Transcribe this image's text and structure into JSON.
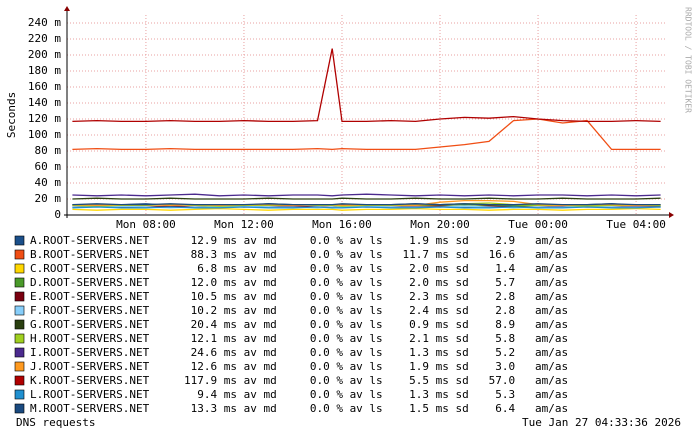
{
  "chart_data": {
    "type": "line",
    "y_label": "Seconds",
    "watermark": "RRDTOOL / TOBI OETIKER",
    "footer_left": "DNS requests",
    "footer_right": "Tue Jan 27 04:33:36 2026",
    "xlim": [
      4.78,
      29.18
    ],
    "ylim": [
      0,
      250
    ],
    "xticks": [
      {
        "value": 8,
        "label": "Mon 08:00"
      },
      {
        "value": 12,
        "label": "Mon 12:00"
      },
      {
        "value": 16,
        "label": "Mon 16:00"
      },
      {
        "value": 20,
        "label": "Mon 20:00"
      },
      {
        "value": 24,
        "label": "Tue 00:00"
      },
      {
        "value": 28,
        "label": "Tue 04:00"
      }
    ],
    "yticks": [
      0,
      {
        "value": 20,
        "label": "20 m"
      },
      {
        "value": 40,
        "label": "40 m"
      },
      {
        "value": 60,
        "label": "60 m"
      },
      {
        "value": 80,
        "label": "80 m"
      },
      {
        "value": 100,
        "label": "100 m"
      },
      {
        "value": 120,
        "label": "120 m"
      },
      {
        "value": 140,
        "label": "140 m"
      },
      {
        "value": 160,
        "label": "160 m"
      },
      {
        "value": 180,
        "label": "180 m"
      },
      {
        "value": 200,
        "label": "200 m"
      },
      {
        "value": 220,
        "label": "220 m"
      },
      {
        "value": 240,
        "label": "240 m"
      }
    ],
    "grid": true,
    "x": [
      5,
      6,
      7,
      8,
      9,
      10,
      11,
      12,
      13,
      14,
      15,
      15.6,
      16,
      17,
      18,
      19,
      20,
      21,
      22,
      23,
      24,
      25,
      26,
      27,
      28,
      29
    ],
    "series": [
      {
        "name": "A.ROOT-SERVERS.NET",
        "color": "#1b4f8a",
        "stats": " 12.9 ms av md     0.0 % av ls    1.9 ms sd    2.9   am/as",
        "values": [
          13,
          12,
          13,
          14,
          12,
          13,
          13,
          12,
          14,
          13,
          12,
          13,
          13,
          12,
          13,
          14,
          13,
          14,
          13,
          12,
          13,
          12,
          13,
          14,
          12,
          13
        ]
      },
      {
        "name": "B.ROOT-SERVERS.NET",
        "color": "#f04e14",
        "stats": " 88.3 ms av md     0.0 % av ls   11.7 ms sd   16.6   am/as",
        "values": [
          82,
          83,
          82,
          82,
          83,
          82,
          82,
          82,
          82,
          82,
          83,
          82,
          83,
          82,
          82,
          82,
          85,
          88,
          92,
          118,
          120,
          115,
          118,
          82,
          82,
          82
        ]
      },
      {
        "name": "C.ROOT-SERVERS.NET",
        "color": "#ffd700",
        "stats": "  6.8 ms av md     0.0 % av ls    2.0 ms sd    1.4   am/as",
        "values": [
          7,
          6,
          7,
          7,
          6,
          7,
          8,
          7,
          6,
          7,
          7,
          7,
          6,
          7,
          7,
          8,
          7,
          7,
          6,
          7,
          7,
          6,
          7,
          7,
          8,
          7
        ]
      },
      {
        "name": "D.ROOT-SERVERS.NET",
        "color": "#4a9a2a",
        "stats": " 12.0 ms av md     0.0 % av ls    2.0 ms sd    5.7   am/as",
        "values": [
          12,
          12,
          11,
          12,
          13,
          12,
          12,
          11,
          12,
          12,
          13,
          12,
          12,
          11,
          12,
          12,
          12,
          13,
          12,
          11,
          12,
          12,
          13,
          12,
          12,
          11
        ]
      },
      {
        "name": "E.ROOT-SERVERS.NET",
        "color": "#7a0010",
        "stats": " 10.5 ms av md     0.0 % av ls    2.3 ms sd    2.8   am/as",
        "values": [
          10,
          11,
          10,
          10,
          11,
          10,
          11,
          10,
          10,
          11,
          10,
          10,
          11,
          10,
          10,
          11,
          11,
          10,
          11,
          10,
          10,
          11,
          10,
          10,
          11,
          10
        ]
      },
      {
        "name": "F.ROOT-SERVERS.NET",
        "color": "#87cefa",
        "stats": " 10.2 ms av md     0.0 % av ls    2.4 ms sd    2.8   am/as",
        "values": [
          10,
          10,
          11,
          10,
          9,
          10,
          10,
          11,
          10,
          10,
          9,
          10,
          10,
          11,
          10,
          10,
          10,
          11,
          10,
          9,
          10,
          10,
          11,
          10,
          10,
          10
        ]
      },
      {
        "name": "G.ROOT-SERVERS.NET",
        "color": "#2a3f10",
        "stats": " 20.4 ms av md     0.0 % av ls    0.9 ms sd    8.9   am/as",
        "values": [
          20,
          21,
          20,
          20,
          21,
          20,
          20,
          20,
          21,
          20,
          20,
          20,
          21,
          20,
          20,
          21,
          20,
          20,
          21,
          20,
          20,
          21,
          20,
          20,
          20,
          21
        ]
      },
      {
        "name": "H.ROOT-SERVERS.NET",
        "color": "#a0d020",
        "stats": " 12.1 ms av md     0.0 % av ls    2.1 ms sd    5.8   am/as",
        "values": [
          12,
          11,
          12,
          12,
          13,
          12,
          11,
          12,
          12,
          13,
          12,
          12,
          11,
          12,
          12,
          12,
          13,
          14,
          15,
          13,
          12,
          12,
          11,
          12,
          12,
          12
        ]
      },
      {
        "name": "I.ROOT-SERVERS.NET",
        "color": "#4b2a8e",
        "stats": " 24.6 ms av md     0.0 % av ls    1.3 ms sd    5.2   am/as",
        "values": [
          25,
          24,
          25,
          24,
          25,
          26,
          24,
          25,
          24,
          25,
          25,
          24,
          25,
          26,
          25,
          24,
          25,
          24,
          25,
          24,
          25,
          25,
          24,
          25,
          24,
          25
        ]
      },
      {
        "name": "J.ROOT-SERVERS.NET",
        "color": "#ff9a20",
        "stats": " 12.6 ms av md     0.0 % av ls    1.9 ms sd    3.0   am/as",
        "values": [
          13,
          12,
          13,
          13,
          12,
          13,
          12,
          13,
          13,
          12,
          13,
          13,
          12,
          13,
          13,
          12,
          16,
          18,
          18,
          17,
          13,
          12,
          13,
          13,
          12,
          13
        ]
      },
      {
        "name": "K.ROOT-SERVERS.NET",
        "color": "#b00000",
        "stats": "117.9 ms av md     0.0 % av ls    5.5 ms sd   57.0   am/as",
        "values": [
          117,
          118,
          117,
          117,
          118,
          117,
          117,
          118,
          117,
          117,
          118,
          208,
          117,
          117,
          118,
          117,
          120,
          122,
          121,
          123,
          120,
          118,
          117,
          117,
          118,
          117
        ]
      },
      {
        "name": "L.ROOT-SERVERS.NET",
        "color": "#2090d0",
        "stats": "  9.4 ms av md     0.0 % av ls    1.3 ms sd    5.3   am/as",
        "values": [
          9,
          10,
          9,
          9,
          10,
          9,
          9,
          10,
          9,
          9,
          10,
          9,
          9,
          10,
          9,
          9,
          10,
          9,
          9,
          10,
          9,
          9,
          10,
          9,
          9,
          10
        ]
      },
      {
        "name": "M.ROOT-SERVERS.NET",
        "color": "#1a4a80",
        "stats": " 13.3 ms av md     0.0 % av ls    1.5 ms sd    6.4   am/as",
        "values": [
          13,
          14,
          13,
          13,
          14,
          13,
          13,
          13,
          14,
          13,
          13,
          13,
          14,
          13,
          13,
          14,
          13,
          14,
          13,
          13,
          14,
          13,
          13,
          14,
          13,
          13
        ]
      }
    ]
  }
}
